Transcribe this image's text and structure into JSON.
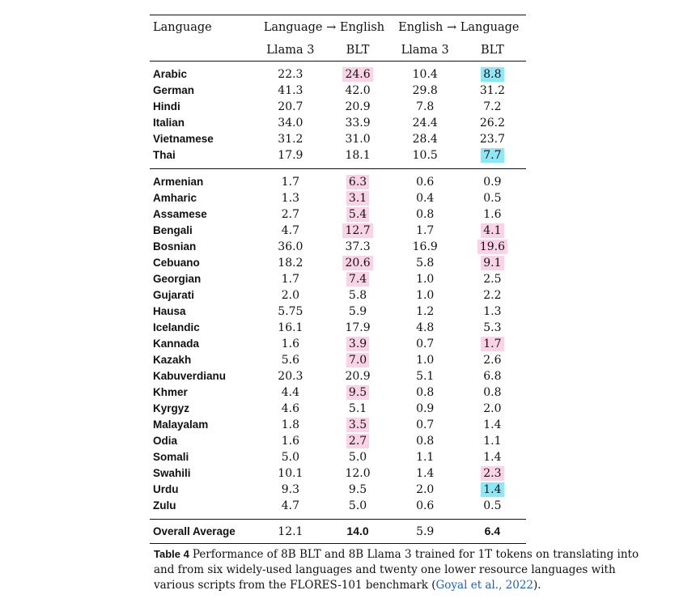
{
  "table": {
    "header_language": "Language",
    "group_l2e": "Language → English",
    "group_e2l": "English → Language",
    "sub_llama": "Llama 3",
    "sub_blt": "BLT",
    "highlight_colors": {
      "pink": "#fbd3e6",
      "cyan": "#8fe6f5"
    },
    "section1": [
      {
        "lang": "Arabic",
        "v": [
          "22.3",
          "24.6",
          "10.4",
          "8.8"
        ],
        "hl": [
          "",
          "pink",
          "",
          "cyan"
        ]
      },
      {
        "lang": "German",
        "v": [
          "41.3",
          "42.0",
          "29.8",
          "31.2"
        ],
        "hl": [
          "",
          "",
          "",
          ""
        ]
      },
      {
        "lang": "Hindi",
        "v": [
          "20.7",
          "20.9",
          "7.8",
          "7.2"
        ],
        "hl": [
          "",
          "",
          "",
          ""
        ]
      },
      {
        "lang": "Italian",
        "v": [
          "34.0",
          "33.9",
          "24.4",
          "26.2"
        ],
        "hl": [
          "",
          "",
          "",
          ""
        ]
      },
      {
        "lang": "Vietnamese",
        "v": [
          "31.2",
          "31.0",
          "28.4",
          "23.7"
        ],
        "hl": [
          "",
          "",
          "",
          ""
        ]
      },
      {
        "lang": "Thai",
        "v": [
          "17.9",
          "18.1",
          "10.5",
          "7.7"
        ],
        "hl": [
          "",
          "",
          "",
          "cyan"
        ]
      }
    ],
    "section2": [
      {
        "lang": "Armenian",
        "v": [
          "1.7",
          "6.3",
          "0.6",
          "0.9"
        ],
        "hl": [
          "",
          "pink",
          "",
          ""
        ]
      },
      {
        "lang": "Amharic",
        "v": [
          "1.3",
          "3.1",
          "0.4",
          "0.5"
        ],
        "hl": [
          "",
          "pink",
          "",
          ""
        ]
      },
      {
        "lang": "Assamese",
        "v": [
          "2.7",
          "5.4",
          "0.8",
          "1.6"
        ],
        "hl": [
          "",
          "pink",
          "",
          ""
        ]
      },
      {
        "lang": "Bengali",
        "v": [
          "4.7",
          "12.7",
          "1.7",
          "4.1"
        ],
        "hl": [
          "",
          "pink",
          "",
          "pink"
        ]
      },
      {
        "lang": "Bosnian",
        "v": [
          "36.0",
          "37.3",
          "16.9",
          "19.6"
        ],
        "hl": [
          "",
          "",
          "",
          "pink"
        ]
      },
      {
        "lang": "Cebuano",
        "v": [
          "18.2",
          "20.6",
          "5.8",
          "9.1"
        ],
        "hl": [
          "",
          "pink",
          "",
          "pink"
        ]
      },
      {
        "lang": "Georgian",
        "v": [
          "1.7",
          "7.4",
          "1.0",
          "2.5"
        ],
        "hl": [
          "",
          "pink",
          "",
          ""
        ]
      },
      {
        "lang": "Gujarati",
        "v": [
          "2.0",
          "5.8",
          "1.0",
          "2.2"
        ],
        "hl": [
          "",
          "",
          "",
          ""
        ]
      },
      {
        "lang": "Hausa",
        "v": [
          "5.75",
          "5.9",
          "1.2",
          "1.3"
        ],
        "hl": [
          "",
          "",
          "",
          ""
        ]
      },
      {
        "lang": "Icelandic",
        "v": [
          "16.1",
          "17.9",
          "4.8",
          "5.3"
        ],
        "hl": [
          "",
          "",
          "",
          ""
        ]
      },
      {
        "lang": "Kannada",
        "v": [
          "1.6",
          "3.9",
          "0.7",
          "1.7"
        ],
        "hl": [
          "",
          "pink",
          "",
          "pink"
        ]
      },
      {
        "lang": "Kazakh",
        "v": [
          "5.6",
          "7.0",
          "1.0",
          "2.6"
        ],
        "hl": [
          "",
          "pink",
          "",
          ""
        ]
      },
      {
        "lang": "Kabuverdianu",
        "v": [
          "20.3",
          "20.9",
          "5.1",
          "6.8"
        ],
        "hl": [
          "",
          "",
          "",
          ""
        ]
      },
      {
        "lang": "Khmer",
        "v": [
          "4.4",
          "9.5",
          "0.8",
          "0.8"
        ],
        "hl": [
          "",
          "pink",
          "",
          ""
        ]
      },
      {
        "lang": "Kyrgyz",
        "v": [
          "4.6",
          "5.1",
          "0.9",
          "2.0"
        ],
        "hl": [
          "",
          "",
          "",
          ""
        ]
      },
      {
        "lang": "Malayalam",
        "v": [
          "1.8",
          "3.5",
          "0.7",
          "1.4"
        ],
        "hl": [
          "",
          "pink",
          "",
          ""
        ]
      },
      {
        "lang": "Odia",
        "v": [
          "1.6",
          "2.7",
          "0.8",
          "1.1"
        ],
        "hl": [
          "",
          "pink",
          "",
          ""
        ]
      },
      {
        "lang": "Somali",
        "v": [
          "5.0",
          "5.0",
          "1.1",
          "1.4"
        ],
        "hl": [
          "",
          "",
          "",
          ""
        ]
      },
      {
        "lang": "Swahili",
        "v": [
          "10.1",
          "12.0",
          "1.4",
          "2.3"
        ],
        "hl": [
          "",
          "",
          "",
          "pink"
        ]
      },
      {
        "lang": "Urdu",
        "v": [
          "9.3",
          "9.5",
          "2.0",
          "1.4"
        ],
        "hl": [
          "",
          "",
          "",
          "cyan"
        ]
      },
      {
        "lang": "Zulu",
        "v": [
          "4.7",
          "5.0",
          "0.6",
          "0.5"
        ],
        "hl": [
          "",
          "",
          "",
          ""
        ]
      }
    ],
    "average": {
      "lang": "Overall Average",
      "v": [
        "12.1",
        "14.0",
        "5.9",
        "6.4"
      ],
      "bold": [
        false,
        true,
        false,
        true
      ]
    }
  },
  "caption": {
    "label": "Table 4",
    "text": "Performance of 8B BLT and 8B Llama 3 trained for 1T tokens on translating into and from six widely-used languages and twenty one lower resource languages with various scripts from the FLORES-101 benchmark (",
    "citation": "Goyal et al., 2022",
    "end": ")."
  }
}
